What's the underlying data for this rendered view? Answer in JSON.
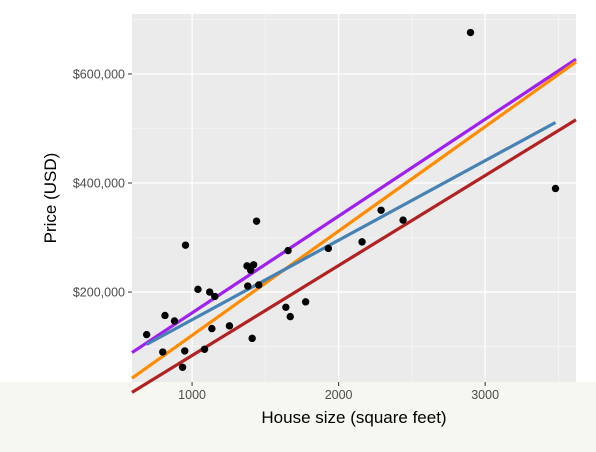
{
  "chart_data": {
    "type": "scatter",
    "xlabel": "House size (square feet)",
    "ylabel": "Price (USD)",
    "xlim": [
      590,
      3620
    ],
    "ylim": [
      35000,
      710000
    ],
    "x_ticks": [
      {
        "value": 1000,
        "label": "1000"
      },
      {
        "value": 2000,
        "label": "2000"
      },
      {
        "value": 3000,
        "label": "3000"
      }
    ],
    "y_ticks": [
      {
        "value": 200000,
        "label": "$200,000"
      },
      {
        "value": 400000,
        "label": "$400,000"
      },
      {
        "value": 600000,
        "label": "$600,000"
      }
    ],
    "grid": true,
    "background": "#ebebeb",
    "points": [
      {
        "x": 690,
        "y": 122000
      },
      {
        "x": 800,
        "y": 90000
      },
      {
        "x": 815,
        "y": 157000
      },
      {
        "x": 880,
        "y": 147000
      },
      {
        "x": 935,
        "y": 62000
      },
      {
        "x": 950,
        "y": 92000
      },
      {
        "x": 955,
        "y": 286000
      },
      {
        "x": 1040,
        "y": 205000
      },
      {
        "x": 1085,
        "y": 95000
      },
      {
        "x": 1120,
        "y": 200000
      },
      {
        "x": 1135,
        "y": 133000
      },
      {
        "x": 1155,
        "y": 192000
      },
      {
        "x": 1255,
        "y": 138000
      },
      {
        "x": 1375,
        "y": 248000
      },
      {
        "x": 1380,
        "y": 211000
      },
      {
        "x": 1400,
        "y": 240000
      },
      {
        "x": 1410,
        "y": 115000
      },
      {
        "x": 1420,
        "y": 250000
      },
      {
        "x": 1440,
        "y": 330000
      },
      {
        "x": 1455,
        "y": 213000
      },
      {
        "x": 1640,
        "y": 172000
      },
      {
        "x": 1655,
        "y": 276000
      },
      {
        "x": 1670,
        "y": 155000
      },
      {
        "x": 1775,
        "y": 182000
      },
      {
        "x": 1930,
        "y": 280000
      },
      {
        "x": 2160,
        "y": 292000
      },
      {
        "x": 2290,
        "y": 350000
      },
      {
        "x": 2440,
        "y": 332000
      },
      {
        "x": 2900,
        "y": 676000
      },
      {
        "x": 3480,
        "y": 390000
      }
    ],
    "point_color": "#000000",
    "lines": [
      {
        "color": "#a020f0",
        "x": [
          590,
          3620
        ],
        "y": [
          89000,
          627000
        ]
      },
      {
        "color": "#ff8c00",
        "x": [
          590,
          3620
        ],
        "y": [
          42000,
          622000
        ]
      },
      {
        "color": "#4682b4",
        "x": [
          690,
          3480
        ],
        "y": [
          104000,
          511000
        ]
      },
      {
        "color": "#b22222",
        "x": [
          590,
          3620
        ],
        "y": [
          16000,
          516000
        ]
      }
    ]
  }
}
